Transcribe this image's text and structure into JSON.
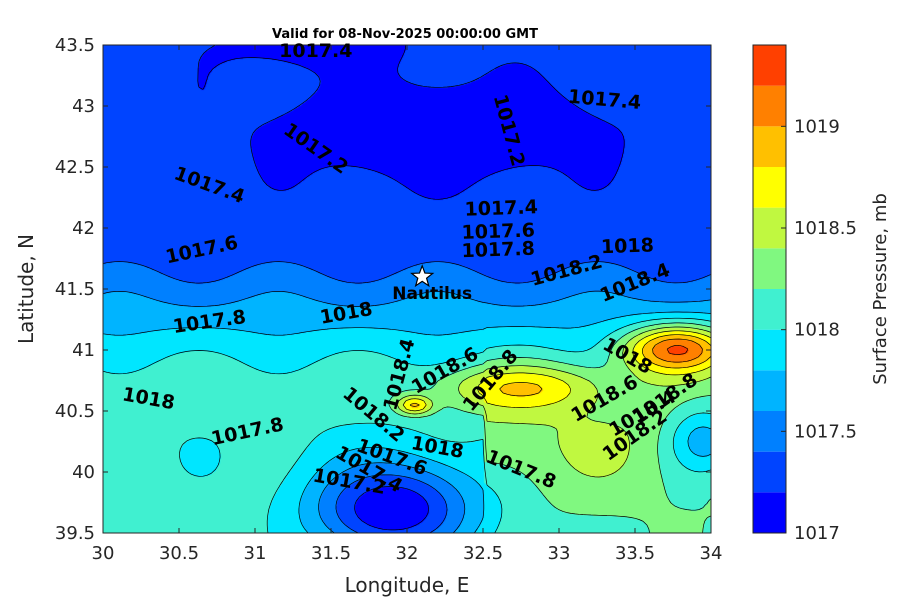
{
  "chart_data": {
    "type": "contourf",
    "title": "Valid for 08-Nov-2025 00:00:00 GMT",
    "xlabel": "Longitude, E",
    "ylabel": "Latitude, N",
    "xlim": [
      30,
      34
    ],
    "ylim": [
      39.5,
      43.5
    ],
    "xticks": [
      "30",
      "30.5",
      "31",
      "31.5",
      "32",
      "32.5",
      "33",
      "33.5",
      "34"
    ],
    "yticks": [
      "39.5",
      "40",
      "40.5",
      "41",
      "41.5",
      "42",
      "42.5",
      "43",
      "43.5"
    ],
    "colorbar": {
      "label": "Surface Pressure, mb",
      "range": [
        1017.0,
        1019.4
      ],
      "ticks": [
        "1017",
        "1017.5",
        "1018",
        "1018.5",
        "1019"
      ],
      "tick_values": [
        1017.0,
        1017.5,
        1018.0,
        1018.5,
        1019.0
      ],
      "levels": [
        1017.0,
        1017.2,
        1017.4,
        1017.6,
        1017.8,
        1018.0,
        1018.2,
        1018.4,
        1018.6,
        1018.8,
        1019.0,
        1019.2,
        1019.4
      ],
      "colors": [
        "#0000ff",
        "#0044ff",
        "#0080ff",
        "#00b4ff",
        "#00e6ff",
        "#40f0d0",
        "#80f880",
        "#c0f840",
        "#ffff00",
        "#ffc000",
        "#ff8000",
        "#ff4000"
      ]
    },
    "marker": {
      "label": "Nautilus",
      "lon": 32.1,
      "lat": 41.6,
      "symbol": "star"
    },
    "contour_labels": [
      {
        "text": "1017.4",
        "lon": 31.4,
        "lat": 43.45,
        "angle": 0
      },
      {
        "text": "1017.4",
        "lon": 33.3,
        "lat": 43.05,
        "angle": 5
      },
      {
        "text": "1017.2",
        "lon": 31.4,
        "lat": 42.65,
        "angle": 35
      },
      {
        "text": "1017.2",
        "lon": 32.67,
        "lat": 42.8,
        "angle": 75
      },
      {
        "text": "1017.4",
        "lon": 30.7,
        "lat": 42.35,
        "angle": 20
      },
      {
        "text": "1017.6",
        "lon": 30.65,
        "lat": 41.82,
        "angle": -12
      },
      {
        "text": "1017.4",
        "lon": 32.62,
        "lat": 42.16,
        "angle": -2
      },
      {
        "text": "1017.6",
        "lon": 32.6,
        "lat": 41.97,
        "angle": -2
      },
      {
        "text": "1017.8",
        "lon": 32.6,
        "lat": 41.82,
        "angle": -2
      },
      {
        "text": "1018",
        "lon": 33.45,
        "lat": 41.85,
        "angle": -2
      },
      {
        "text": "1018.2",
        "lon": 33.05,
        "lat": 41.65,
        "angle": -15
      },
      {
        "text": "1018.4",
        "lon": 33.5,
        "lat": 41.55,
        "angle": -22
      },
      {
        "text": "1017.8",
        "lon": 30.7,
        "lat": 41.23,
        "angle": -8
      },
      {
        "text": "1018",
        "lon": 31.6,
        "lat": 41.3,
        "angle": -10
      },
      {
        "text": "1018",
        "lon": 30.3,
        "lat": 40.6,
        "angle": 10
      },
      {
        "text": "1017.8",
        "lon": 30.95,
        "lat": 40.33,
        "angle": -12
      },
      {
        "text": "1018.4",
        "lon": 31.95,
        "lat": 40.8,
        "angle": -75
      },
      {
        "text": "1018.6",
        "lon": 32.25,
        "lat": 40.83,
        "angle": -30
      },
      {
        "text": "1018.8",
        "lon": 32.55,
        "lat": 40.75,
        "angle": -50
      },
      {
        "text": "1018.2",
        "lon": 31.78,
        "lat": 40.47,
        "angle": 40
      },
      {
        "text": "1018",
        "lon": 32.2,
        "lat": 40.2,
        "angle": 10
      },
      {
        "text": "1017.6",
        "lon": 31.9,
        "lat": 40.12,
        "angle": 20
      },
      {
        "text": "1017.4",
        "lon": 31.75,
        "lat": 40.02,
        "angle": 30
      },
      {
        "text": "1017.2",
        "lon": 31.62,
        "lat": 39.92,
        "angle": 10
      },
      {
        "text": "1017.8",
        "lon": 32.75,
        "lat": 40.02,
        "angle": 22
      },
      {
        "text": "1018",
        "lon": 33.45,
        "lat": 40.95,
        "angle": 30
      },
      {
        "text": "1018.6",
        "lon": 33.3,
        "lat": 40.6,
        "angle": -30
      },
      {
        "text": "1018.4",
        "lon": 33.55,
        "lat": 40.48,
        "angle": -30
      },
      {
        "text": "1018.8",
        "lon": 33.7,
        "lat": 40.6,
        "angle": -35
      },
      {
        "text": "1018.2",
        "lon": 33.5,
        "lat": 40.3,
        "angle": -35
      }
    ],
    "pressure_centers": [
      {
        "name": "low-north",
        "lon": 32.2,
        "lat": 42.8,
        "value": 1017.05,
        "sx": 1.25,
        "sy": 0.45
      },
      {
        "name": "low-south",
        "lon": 31.9,
        "lat": 39.7,
        "value": 1017.0,
        "sx": 0.55,
        "sy": 0.4
      },
      {
        "name": "high-east",
        "lon": 33.78,
        "lat": 41.0,
        "value": 1019.25,
        "sx": 0.35,
        "sy": 0.2
      },
      {
        "name": "high-mid",
        "lon": 32.75,
        "lat": 40.68,
        "value": 1018.85,
        "sx": 0.45,
        "sy": 0.18
      },
      {
        "name": "high-west",
        "lon": 32.05,
        "lat": 40.55,
        "value": 1018.85,
        "sx": 0.12,
        "sy": 0.08
      },
      {
        "name": "low-east",
        "lon": 33.95,
        "lat": 40.25,
        "value": 1017.7,
        "sx": 0.25,
        "sy": 0.3
      }
    ]
  }
}
